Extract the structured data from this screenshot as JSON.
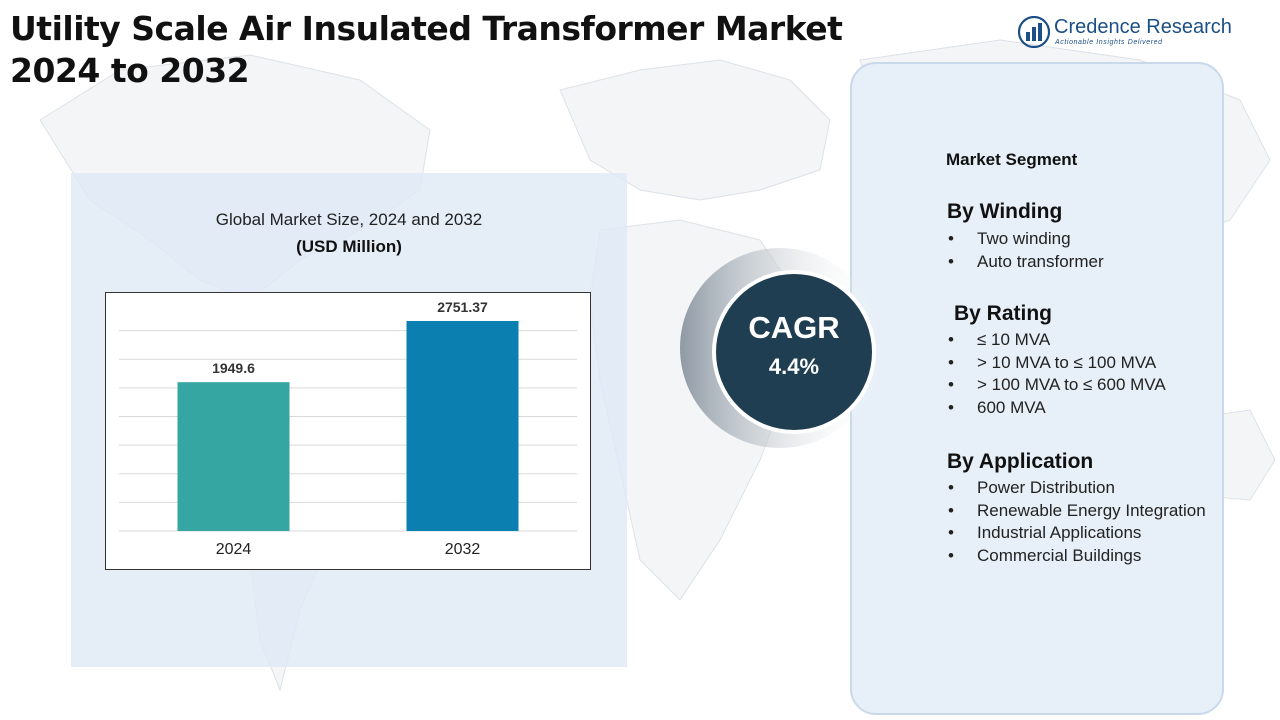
{
  "title_lines": [
    "Utility Scale Air Insulated Transformer Market",
    "2024 to 2032"
  ],
  "logo": {
    "name": "Credence Research",
    "tagline": "Actionable Insights Delivered",
    "icon": "bar-chart-logo-icon"
  },
  "chart_data": {
    "type": "bar",
    "title": "Global Market Size, 2024 and 2032",
    "subtitle": "(USD Million)",
    "categories": [
      "2024",
      "2032"
    ],
    "values": [
      1949.6,
      2751.37
    ],
    "value_labels": [
      "1949.6",
      "2751.37"
    ],
    "colors": [
      "#36a6a2",
      "#0a7fb0"
    ],
    "grid": true,
    "ylim": [
      0,
      3000
    ]
  },
  "cagr": {
    "label": "CAGR",
    "value": "4.4%"
  },
  "segments": {
    "header": "Market Segment",
    "groups": [
      {
        "title": "By Winding",
        "items": [
          "Two winding",
          "Auto transformer"
        ]
      },
      {
        "title": "By Rating",
        "items": [
          "≤ 10 MVA",
          "> 10 MVA to ≤ 100 MVA",
          "> 100 MVA to ≤ 600 MVA",
          "600 MVA"
        ]
      },
      {
        "title": "By Application",
        "items": [
          "Power Distribution",
          "Renewable Energy Integration",
          "Industrial Applications",
          "Commercial Buildings"
        ]
      }
    ]
  }
}
